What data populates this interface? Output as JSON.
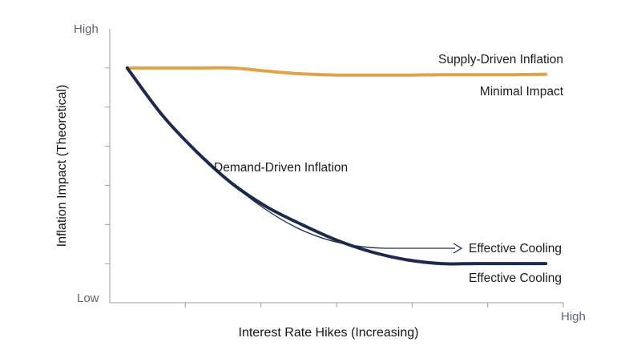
{
  "chart_data": {
    "type": "line",
    "title": "",
    "xlabel": "Interest Rate Hikes (Increasing)",
    "ylabel": "Inflation Impact (Theoretical)",
    "x_tick_labels": {
      "max": "High"
    },
    "y_tick_labels": {
      "min": "Low",
      "max": "High"
    },
    "x": [
      0,
      0.5,
      1,
      1.5,
      2,
      2.5,
      3,
      3.5,
      4,
      4.5,
      5,
      5.5,
      6
    ],
    "xlim": [
      -0.25,
      6.25
    ],
    "ylim": [
      0,
      7
    ],
    "grid": false,
    "series": [
      {
        "name": "Supply-Driven Inflation",
        "color": "#e0a448",
        "values": [
          6.0,
          6.0,
          6.0,
          6.0,
          5.92,
          5.85,
          5.82,
          5.82,
          5.82,
          5.83,
          5.83,
          5.83,
          5.84
        ]
      },
      {
        "name": "Demand-Driven Inflation",
        "color": "#1c2b4c",
        "values": [
          6.0,
          4.8,
          3.85,
          3.05,
          2.45,
          2.0,
          1.6,
          1.3,
          1.1,
          1.0,
          1.0,
          1.0,
          1.0
        ]
      }
    ],
    "annotations": {
      "supply_label": "Supply-Driven Inflation",
      "supply_note": "Minimal Impact",
      "demand_label": "Demand-Driven Inflation",
      "arrow_label": "Effective Cooling",
      "demand_note": "Effective Cooling"
    }
  }
}
